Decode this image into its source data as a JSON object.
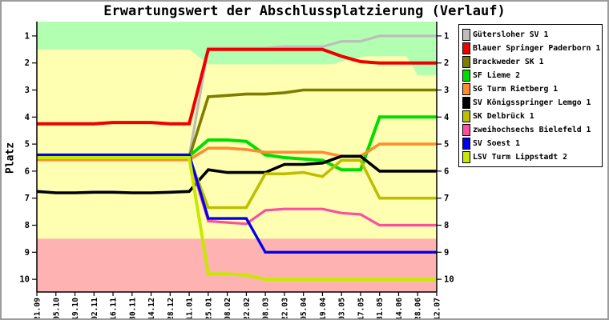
{
  "window": {
    "background": "#ffffff",
    "border_color": "#9c9c9c"
  },
  "chart_data": {
    "type": "line",
    "title": "Erwartungswert der Abschlussplatzierung (Verlauf)",
    "ylabel": "Platz",
    "y_inverted": true,
    "ylim": [
      0.47,
      10.47
    ],
    "y_ticks": [
      1,
      2,
      3,
      4,
      5,
      6,
      7,
      8,
      9,
      10
    ],
    "grid": false,
    "legend_position": "right",
    "x_labels": [
      "21.09",
      "05.10",
      "19.10",
      "02.11",
      "16.11",
      "30.11",
      "14.12",
      "28.12",
      "11.01",
      "25.01",
      "08.02",
      "22.02",
      "08.03",
      "22.03",
      "05.04",
      "19.04",
      "03.05",
      "17.05",
      "31.05",
      "14.06",
      "28.06",
      "12.07"
    ],
    "zones": {
      "top": {
        "meaning": "green-zone",
        "color": "#b2ffb2",
        "lower_boundary": [
          [
            0,
            1.5
          ],
          [
            8,
            1.5
          ],
          [
            9,
            2.05
          ],
          [
            15.5,
            2.05
          ],
          [
            16.2,
            1.9
          ],
          [
            17.3,
            1.75
          ],
          [
            19.4,
            1.75
          ],
          [
            20,
            2.45
          ],
          [
            21,
            2.45
          ]
        ]
      },
      "middle": {
        "meaning": "neutral-zone",
        "color": "#ffffb2"
      },
      "bottom": {
        "meaning": "relegation-zone",
        "color": "#ffb2b2",
        "from_value": 8.5
      }
    },
    "series": [
      {
        "name": "Gütersloher SV 1",
        "color": "#bdbdbd",
        "width": 3.2,
        "values": [
          5.45,
          5.45,
          5.45,
          5.45,
          5.45,
          5.45,
          5.45,
          5.45,
          5.45,
          1.45,
          1.45,
          1.45,
          1.45,
          1.4,
          1.4,
          1.4,
          1.2,
          1.2,
          1.0,
          1.0,
          1.0,
          1.0
        ]
      },
      {
        "name": "Blauer Springer Paderborn 1",
        "color": "#ee0000",
        "width": 4,
        "values": [
          4.25,
          4.25,
          4.25,
          4.25,
          4.2,
          4.2,
          4.2,
          4.25,
          4.25,
          1.5,
          1.5,
          1.5,
          1.5,
          1.5,
          1.5,
          1.5,
          1.75,
          1.95,
          2.0,
          2.0,
          2.0,
          2.0
        ]
      },
      {
        "name": "Brackweder SK 1",
        "color": "#7d7d00",
        "width": 3.6,
        "values": [
          5.5,
          5.5,
          5.5,
          5.5,
          5.5,
          5.5,
          5.5,
          5.5,
          5.5,
          3.25,
          3.2,
          3.15,
          3.15,
          3.1,
          3.0,
          3.0,
          3.0,
          3.0,
          3.0,
          3.0,
          3.0,
          3.0
        ]
      },
      {
        "name": "SF Lieme 2",
        "color": "#00dd00",
        "width": 4,
        "values": [
          5.45,
          5.45,
          5.45,
          5.45,
          5.45,
          5.45,
          5.45,
          5.45,
          5.45,
          4.85,
          4.85,
          4.9,
          5.4,
          5.5,
          5.55,
          5.6,
          5.95,
          5.95,
          4.0,
          4.0,
          4.0,
          4.0
        ]
      },
      {
        "name": "SG Turm Rietberg 1",
        "color": "#ff8c30",
        "width": 3.6,
        "values": [
          5.58,
          5.58,
          5.58,
          5.58,
          5.58,
          5.58,
          5.58,
          5.58,
          5.58,
          5.15,
          5.15,
          5.2,
          5.3,
          5.3,
          5.3,
          5.3,
          5.45,
          5.45,
          5.0,
          5.0,
          5.0,
          5.0
        ]
      },
      {
        "name": "SV Königsspringer Lemgo 1",
        "color": "#000000",
        "width": 3.6,
        "values": [
          6.75,
          6.8,
          6.8,
          6.78,
          6.78,
          6.8,
          6.8,
          6.78,
          6.75,
          5.95,
          6.05,
          6.05,
          6.05,
          5.75,
          5.75,
          5.7,
          5.45,
          5.45,
          6.0,
          6.0,
          6.0,
          6.0
        ]
      },
      {
        "name": "SK Delbrück 1",
        "color": "#bebe00",
        "width": 3.6,
        "values": [
          5.5,
          5.5,
          5.5,
          5.5,
          5.5,
          5.5,
          5.5,
          5.5,
          5.5,
          7.35,
          7.35,
          7.35,
          6.1,
          6.1,
          6.05,
          6.2,
          5.6,
          5.6,
          7.0,
          7.0,
          7.0,
          7.0
        ]
      },
      {
        "name": "zweihochsechs Bielefeld 1",
        "color": "#ff4da0",
        "width": 3.2,
        "values": [
          5.52,
          5.52,
          5.52,
          5.52,
          5.52,
          5.52,
          5.52,
          5.52,
          5.52,
          7.85,
          7.9,
          7.95,
          7.45,
          7.4,
          7.4,
          7.4,
          7.55,
          7.6,
          8.0,
          8.0,
          8.0,
          8.0
        ]
      },
      {
        "name": "SV Soest 1",
        "color": "#0000ee",
        "width": 3.4,
        "values": [
          5.4,
          5.4,
          5.4,
          5.4,
          5.4,
          5.4,
          5.4,
          5.4,
          5.4,
          7.75,
          7.75,
          7.75,
          9.0,
          9.0,
          9.0,
          9.0,
          9.0,
          9.0,
          9.0,
          9.0,
          9.0,
          9.0
        ]
      },
      {
        "name": "LSV Turm Lippstadt 2",
        "color": "#c8e800",
        "width": 4,
        "values": [
          5.5,
          5.5,
          5.5,
          5.5,
          5.5,
          5.5,
          5.5,
          5.5,
          5.5,
          9.8,
          9.8,
          9.85,
          10.0,
          10.0,
          10.0,
          10.0,
          10.0,
          10.0,
          10.0,
          10.0,
          10.0,
          10.0
        ]
      }
    ]
  }
}
